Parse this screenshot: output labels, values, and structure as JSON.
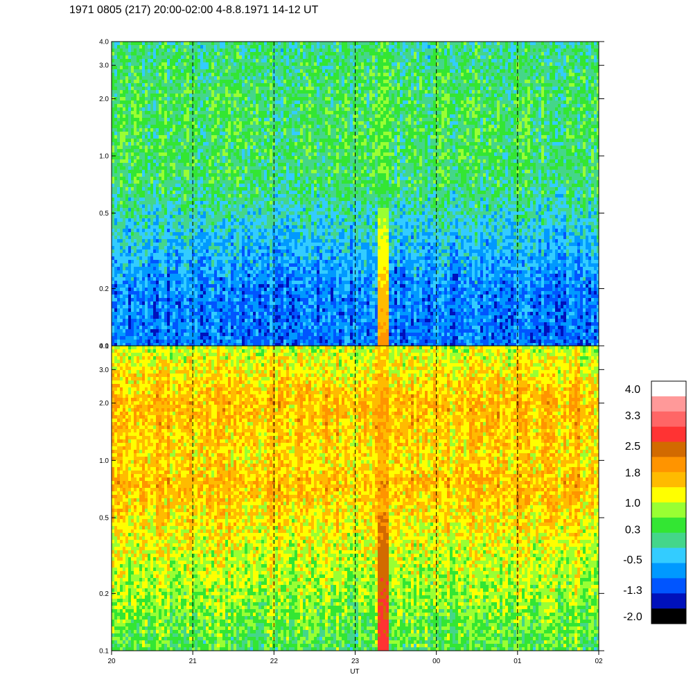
{
  "title": "1971 0805 (217) 20:00-02:00 4-8.8.1971  14-12 UT",
  "chart_data": [
    {
      "type": "heatmap",
      "panel": "upper",
      "title": "",
      "xlabel": "UT",
      "ylabel": "",
      "x_ticks": [
        "20",
        "21",
        "22",
        "23",
        "00",
        "01",
        "02"
      ],
      "y_ticks": [
        "0.1",
        "0.2",
        "0.5",
        "1.0",
        "2.0",
        "3.0",
        "4.0"
      ],
      "y_tick_values": [
        0.1,
        0.2,
        0.5,
        1.0,
        2.0,
        3.0,
        4.0
      ],
      "y_scale": "log",
      "ylim": [
        0.1,
        4.0
      ],
      "xlim_hours": [
        20,
        26
      ],
      "grid": "dashed vertical lines at each hour",
      "level_profile": [
        {
          "y": 0.1,
          "level": -0.9
        },
        {
          "y": 0.2,
          "level": -0.8
        },
        {
          "y": 0.4,
          "level": -0.3
        },
        {
          "y": 0.7,
          "level": 0.2
        },
        {
          "y": 1.0,
          "level": 0.3
        },
        {
          "y": 2.0,
          "level": 0.3
        },
        {
          "y": 4.0,
          "level": 0.1
        }
      ],
      "event": {
        "start_hour": 23.28,
        "end_hour": 23.4,
        "level_low": 1.9,
        "level_high": 0.8
      }
    },
    {
      "type": "heatmap",
      "panel": "lower",
      "title": "",
      "xlabel": "UT",
      "ylabel": "",
      "x_ticks": [
        "20",
        "21",
        "22",
        "23",
        "00",
        "01",
        "02"
      ],
      "y_ticks": [
        "0.1",
        "0.2",
        "0.5",
        "1.0",
        "2.0",
        "3.0",
        "4.0"
      ],
      "y_tick_values": [
        0.1,
        0.2,
        0.5,
        1.0,
        2.0,
        3.0,
        4.0
      ],
      "y_scale": "log",
      "ylim": [
        0.1,
        4.0
      ],
      "xlim_hours": [
        20,
        26
      ],
      "grid": "dashed vertical lines at each hour",
      "level_profile": [
        {
          "y": 0.1,
          "level": 0.4
        },
        {
          "y": 0.2,
          "level": 0.8
        },
        {
          "y": 0.35,
          "level": 1.1
        },
        {
          "y": 0.5,
          "level": 1.3
        },
        {
          "y": 0.75,
          "level": 1.6
        },
        {
          "y": 1.0,
          "level": 1.35
        },
        {
          "y": 2.0,
          "level": 1.6
        },
        {
          "y": 4.0,
          "level": 1.0
        }
      ],
      "event": {
        "start_hour": 23.28,
        "end_hour": 23.4,
        "level_low": 2.7,
        "level_high": 2.1
      }
    }
  ],
  "colorbar": {
    "labels": [
      "4.0",
      "3.3",
      "2.5",
      "1.8",
      "1.0",
      "0.3",
      "-0.5",
      "-1.3",
      "-2.0"
    ],
    "label_values": [
      4.0,
      3.3,
      2.5,
      1.8,
      1.0,
      0.3,
      -0.5,
      -1.3,
      -2.0
    ],
    "range": [
      -2.0,
      4.0
    ],
    "colors": [
      "#ffffff",
      "#ff9999",
      "#ff6666",
      "#ff3333",
      "#d26a00",
      "#ff9400",
      "#ffbb00",
      "#ffff00",
      "#99ff33",
      "#33e633",
      "#44d68a",
      "#33ccff",
      "#0099ff",
      "#0055ff",
      "#0011bb",
      "#000000"
    ]
  }
}
